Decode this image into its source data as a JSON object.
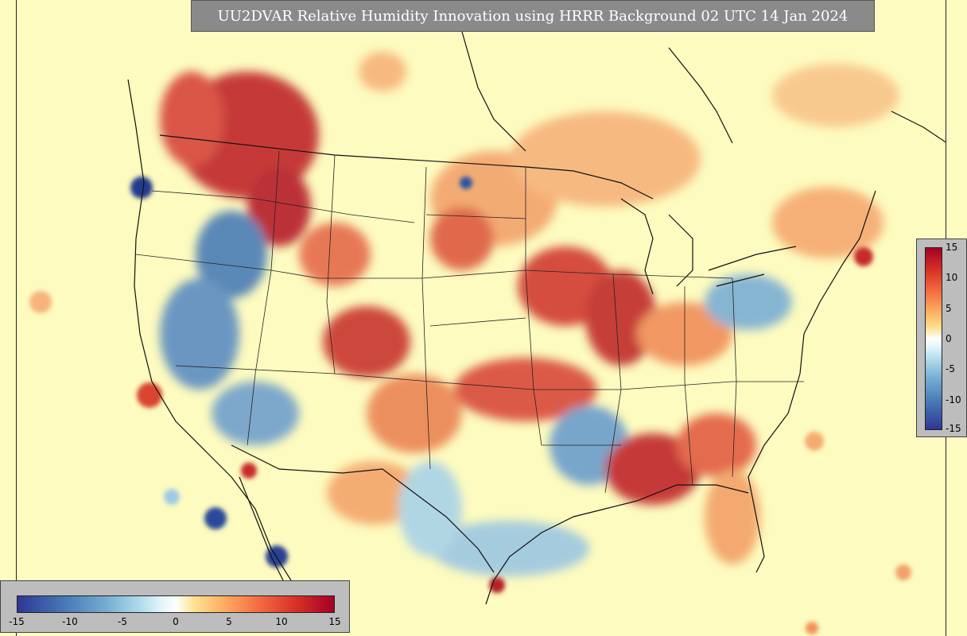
{
  "title": "UU2DVAR Relative Humidity Innovation using HRRR Background 02 UTC 14 Jan 2024",
  "colorbar_horizontal": {
    "ticks": [
      "-15",
      "-10",
      "-5",
      "0",
      "5",
      "10",
      "15"
    ]
  },
  "colorbar_vertical": {
    "ticks": [
      "15",
      "10",
      "5",
      "0",
      "-5",
      "-10",
      "-15"
    ]
  },
  "colors": {
    "background": "#fdfbbf",
    "strong_positive": "#a50026",
    "positive": "#f46d43",
    "neutral": "#ffffff",
    "negative": "#74add1",
    "strong_negative": "#313695"
  },
  "value_range": [
    -15,
    15
  ]
}
